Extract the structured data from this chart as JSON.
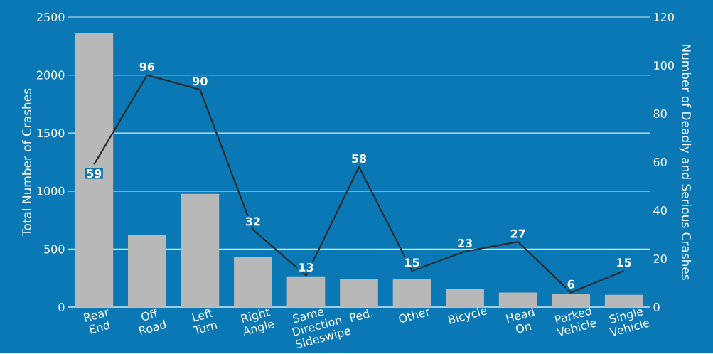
{
  "chart_data": {
    "type": "bar",
    "categories": [
      "Rear End",
      "Off Road",
      "Left Turn",
      "Right Angle",
      "Same Direction Sideswipe",
      "Ped.",
      "Other",
      "Bicycle",
      "Head On",
      "Parked Vehicle",
      "Single Vehicle"
    ],
    "ylabel": "Total Number of Crashes",
    "y2label": "Number of Deadly and Serious Crashes",
    "ylim": [
      0,
      2500
    ],
    "yticks": [
      0,
      500,
      1000,
      1500,
      2000,
      2500
    ],
    "y2lim": [
      0,
      120
    ],
    "y2ticks": [
      0,
      20,
      40,
      60,
      80,
      100,
      120
    ],
    "grid": "y",
    "series": [
      {
        "type": "bar",
        "color": "#b8b8b8",
        "values": [
          2360,
          625,
          975,
          430,
          265,
          245,
          240,
          160,
          125,
          110,
          105
        ]
      },
      {
        "type": "line",
        "axis": "y2",
        "color": "#2b2b2b",
        "values": [
          59,
          96,
          90,
          32,
          13,
          58,
          15,
          23,
          27,
          6,
          15
        ],
        "value_labels": [
          "59",
          "96",
          "90",
          "32",
          "13",
          "58",
          "15",
          "23",
          "27",
          "6",
          "15"
        ]
      }
    ]
  }
}
